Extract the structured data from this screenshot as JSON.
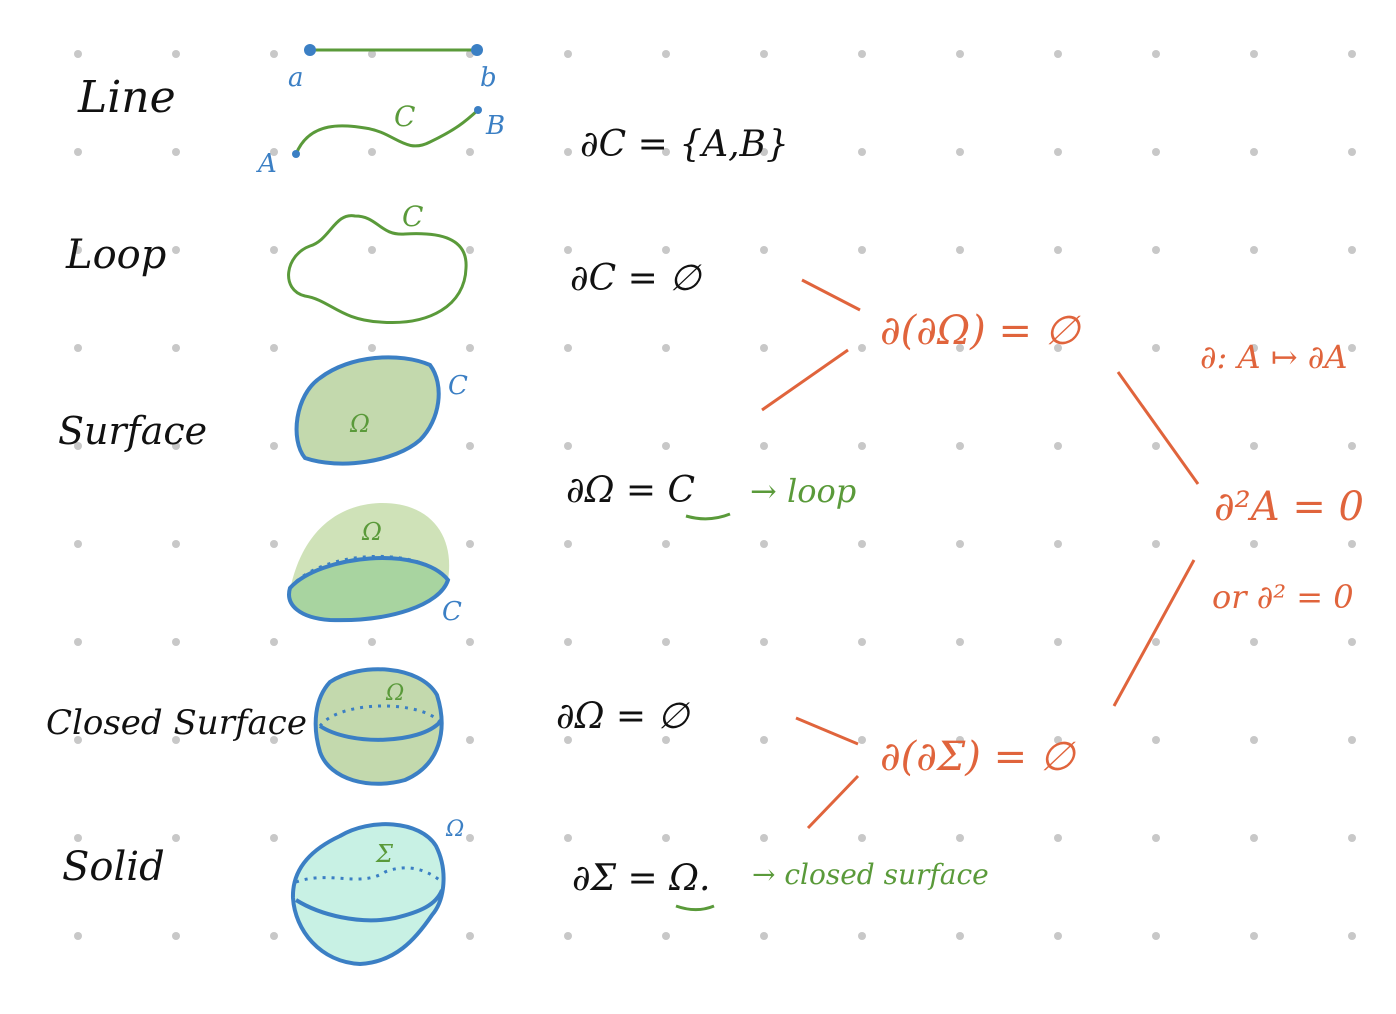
{
  "colors": {
    "ink": "#111111",
    "blue": "#3b7fc4",
    "green": "#5a9a3a",
    "red": "#e0643c",
    "surface_fill": "#c3d9ad",
    "surface_fill_light": "#cfe2b8",
    "surface_fill_dark": "#a8d4a0",
    "solid_fill": "#c8f1e4",
    "dot_grid": "#c8c8c8"
  },
  "rows": {
    "line": "Line",
    "loop": "Loop",
    "surface": "Surface",
    "closed_surface": "Closed Surface",
    "solid": "Solid"
  },
  "figure_labels": {
    "segment_start": "a",
    "segment_end": "b",
    "curve_name": "C",
    "curve_start": "A",
    "curve_end": "B",
    "loop_name": "C",
    "surface_region": "Ω",
    "surface_boundary": "C",
    "surface2_region": "Ω",
    "surface2_boundary": "C",
    "closed_surface_region": "Ω",
    "solid_region": "Σ",
    "solid_boundary": "Ω"
  },
  "equations": {
    "line_boundary": "∂C = {A,B}",
    "loop_boundary": "∂C = ∅",
    "surface_boundary": "∂Ω = C",
    "surface_note": "→ loop",
    "closed_surface_boundary": "∂Ω = ∅",
    "solid_boundary": "∂Σ = Ω.",
    "solid_note": "→ closed surface",
    "boundary_of_boundary_surface": "∂(∂Ω) = ∅",
    "boundary_of_boundary_solid": "∂(∂Σ) = ∅",
    "operator_def": "∂: A ↦ ∂A",
    "main_result": "∂²A = 0",
    "alt_result": "or ∂² = 0"
  }
}
